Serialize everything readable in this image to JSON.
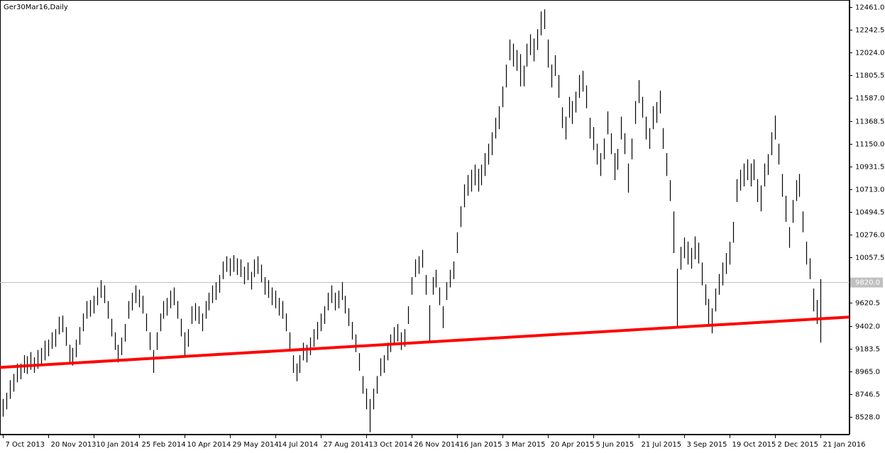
{
  "chart_data": {
    "type": "ohlc",
    "title": "Ger30Mar16,Daily",
    "color": "#000000",
    "categories": [
      "7 Oct 2013",
      null,
      null,
      null,
      null,
      null,
      null,
      null,
      null,
      null,
      null,
      null,
      null,
      "20 Nov 2013",
      null,
      null,
      null,
      null,
      null,
      null,
      null,
      null,
      null,
      null,
      null,
      null,
      "10 Jan 2014",
      null,
      null,
      null,
      null,
      null,
      null,
      null,
      null,
      null,
      null,
      null,
      null,
      "25 Feb 2014",
      null,
      null,
      null,
      null,
      null,
      null,
      null,
      null,
      null,
      null,
      null,
      null,
      "10 Apr 2014",
      null,
      null,
      null,
      null,
      null,
      null,
      null,
      null,
      null,
      null,
      null,
      null,
      "29 May 2014",
      null,
      null,
      null,
      null,
      null,
      null,
      null,
      null,
      null,
      null,
      null,
      null,
      "14 Jul 2014",
      null,
      null,
      null,
      null,
      null,
      null,
      null,
      null,
      null,
      null,
      null,
      null,
      "27 Aug 2014",
      null,
      null,
      null,
      null,
      null,
      null,
      null,
      null,
      null,
      null,
      null,
      null,
      "13 Oct 2014",
      null,
      null,
      null,
      null,
      null,
      null,
      null,
      null,
      null,
      null,
      null,
      null,
      "26 Nov 2014",
      null,
      null,
      null,
      null,
      null,
      null,
      null,
      null,
      null,
      null,
      null,
      null,
      "16 Jan 2015",
      null,
      null,
      null,
      null,
      null,
      null,
      null,
      null,
      null,
      null,
      null,
      null,
      "3 Mar 2015",
      null,
      null,
      null,
      null,
      null,
      null,
      null,
      null,
      null,
      null,
      null,
      null,
      "20 Apr 2015",
      null,
      null,
      null,
      null,
      null,
      null,
      null,
      null,
      null,
      null,
      null,
      null,
      "5 Jun 2015",
      null,
      null,
      null,
      null,
      null,
      null,
      null,
      null,
      null,
      null,
      null,
      null,
      "21 Jul 2015",
      null,
      null,
      null,
      null,
      null,
      null,
      null,
      null,
      null,
      null,
      null,
      null,
      "3 Sep 2015",
      null,
      null,
      null,
      null,
      null,
      null,
      null,
      null,
      null,
      null,
      null,
      null,
      "19 Oct 2015",
      null,
      null,
      null,
      null,
      null,
      null,
      null,
      null,
      null,
      null,
      null,
      null,
      "2 Dec 2015",
      null,
      null,
      null,
      null,
      null,
      null,
      null,
      null,
      null,
      null,
      null,
      null,
      "21 Jan 2016"
    ],
    "high": [
      8700,
      8760,
      8880,
      8940,
      9040,
      9040,
      9120,
      9110,
      9150,
      9100,
      9170,
      9190,
      9260,
      9270,
      9340,
      9370,
      9490,
      9500,
      9390,
      9220,
      9190,
      9270,
      9390,
      9520,
      9640,
      9650,
      9690,
      9770,
      9840,
      9790,
      9640,
      9470,
      9340,
      9220,
      9290,
      9420,
      9640,
      9720,
      9790,
      9750,
      9690,
      9520,
      9340,
      9170,
      9340,
      9520,
      9640,
      9670,
      9740,
      9770,
      9640,
      9470,
      9340,
      9370,
      9590,
      9620,
      9590,
      9520,
      9640,
      9720,
      9790,
      9820,
      9890,
      10020,
      10070,
      10050,
      10080,
      10050,
      10040,
      9970,
      10010,
      9920,
      10040,
      10070,
      9990,
      9870,
      9840,
      9770,
      9740,
      9670,
      9640,
      9520,
      9340,
      9120,
      9040,
      9120,
      9240,
      9220,
      9290,
      9370,
      9440,
      9520,
      9590,
      9720,
      9790,
      9720,
      9740,
      9820,
      9690,
      9570,
      9440,
      9320,
      9140,
      8920,
      8800,
      8700,
      8800,
      8920,
      9090,
      9120,
      9240,
      9320,
      9390,
      9420,
      9340,
      9370,
      9590,
      9870,
      10040,
      10070,
      10130,
      9890,
      9600,
      9870,
      9940,
      9770,
      9590,
      9820,
      9940,
      10020,
      10300,
      10550,
      10760,
      10850,
      10900,
      10950,
      10910,
      10950,
      11060,
      11150,
      11260,
      11400,
      11510,
      11700,
      11910,
      12150,
      12110,
      12050,
      12010,
      11900,
      12110,
      12200,
      12160,
      12250,
      12420,
      12440,
      12150,
      11910,
      12000,
      11810,
      11500,
      11410,
      11600,
      11560,
      11650,
      11810,
      11850,
      11710,
      11400,
      11310,
      11150,
      11060,
      11200,
      11460,
      11250,
      11060,
      11100,
      11410,
      11250,
      10960,
      11200,
      11560,
      11760,
      11600,
      11410,
      11300,
      11510,
      11550,
      11660,
      11300,
      11060,
      10800,
      10500,
      9950,
      10160,
      10250,
      10210,
      10150,
      10260,
      10200,
      10010,
      9800,
      9660,
      9570,
      9760,
      9900,
      10010,
      10100,
      10210,
      10400,
      10810,
      10900,
      10960,
      11000,
      10960,
      11000,
      10810,
      10750,
      10960,
      11050,
      11260,
      11420,
      11150,
      10860,
      10650,
      10350,
      10610,
      10800,
      10860,
      10500,
      10210,
      10050,
      9760,
      9650,
      9850
    ],
    "low": [
      8530,
      8600,
      8700,
      8770,
      8860,
      8890,
      8950,
      8940,
      8980,
      8950,
      8990,
      9020,
      9070,
      9110,
      9180,
      9200,
      9320,
      9340,
      9210,
      9050,
      9020,
      9100,
      9220,
      9350,
      9470,
      9490,
      9520,
      9600,
      9670,
      9620,
      9470,
      9300,
      9170,
      9050,
      9120,
      9250,
      9470,
      9550,
      9620,
      9580,
      9520,
      9350,
      9170,
      8950,
      9170,
      9350,
      9470,
      9500,
      9570,
      9600,
      9470,
      9300,
      9120,
      9200,
      9420,
      9450,
      9420,
      9350,
      9470,
      9550,
      9620,
      9650,
      9720,
      9850,
      9920,
      9880,
      9920,
      9890,
      9870,
      9800,
      9840,
      9750,
      9870,
      9900,
      9820,
      9700,
      9670,
      9600,
      9570,
      9500,
      9470,
      9350,
      9170,
      8950,
      8870,
      8950,
      9070,
      9050,
      9120,
      9200,
      9270,
      9350,
      9420,
      9550,
      9620,
      9550,
      9570,
      9650,
      9520,
      9400,
      9270,
      9150,
      8970,
      8750,
      8600,
      8380,
      8600,
      8750,
      8920,
      8950,
      9070,
      9150,
      9220,
      9250,
      9170,
      9200,
      9420,
      9700,
      9870,
      9900,
      9960,
      9700,
      9250,
      9700,
      9770,
      9600,
      9380,
      9650,
      9770,
      9850,
      10100,
      10350,
      10540,
      10650,
      10690,
      10750,
      10690,
      10750,
      10840,
      10950,
      11040,
      11200,
      11290,
      11500,
      11690,
      11950,
      11890,
      11850,
      11700,
      11700,
      11890,
      12000,
      11940,
      12050,
      12190,
      12250,
      11880,
      11690,
      11800,
      11590,
      11300,
      11190,
      11400,
      11340,
      11450,
      11590,
      11650,
      11490,
      11200,
      11090,
      10950,
      10840,
      11000,
      11240,
      11050,
      10800,
      10900,
      11190,
      11050,
      10680,
      11000,
      11340,
      11540,
      11400,
      11190,
      11100,
      11290,
      11350,
      11440,
      11100,
      10840,
      10600,
      10100,
      9380,
      9940,
      10050,
      9990,
      9950,
      10040,
      10000,
      9790,
      9600,
      9420,
      9330,
      9540,
      9700,
      9790,
      9900,
      9990,
      10200,
      10590,
      10700,
      10740,
      10800,
      10740,
      10800,
      10590,
      10500,
      10740,
      10850,
      11040,
      11190,
      10950,
      10640,
      10400,
      10150,
      10390,
      10600,
      10640,
      10300,
      9990,
      9850,
      9540,
      9420,
      9240
    ],
    "ylim": [
      8358,
      12509
    ],
    "yticks": [
      {
        "value": 12461,
        "label": "12461.0"
      },
      {
        "value": 12242.5,
        "label": "12242.5"
      },
      {
        "value": 12024,
        "label": "12024.0"
      },
      {
        "value": 11805.5,
        "label": "11805.5"
      },
      {
        "value": 11587,
        "label": "11587.0"
      },
      {
        "value": 11368.5,
        "label": "11368.5"
      },
      {
        "value": 11150,
        "label": "11150.0"
      },
      {
        "value": 10931.5,
        "label": "10931.5"
      },
      {
        "value": 10713,
        "label": "10713.0"
      },
      {
        "value": 10494.5,
        "label": "10494.5"
      },
      {
        "value": 10276,
        "label": "10276.0"
      },
      {
        "value": 10057.5,
        "label": "10057.5"
      },
      {
        "value": 9620.5,
        "label": "9620.5"
      },
      {
        "value": 9402,
        "label": "9402.0"
      },
      {
        "value": 9183.5,
        "label": "9183.5"
      },
      {
        "value": 8965,
        "label": "8965.0"
      },
      {
        "value": 8746.5,
        "label": "8746.5"
      },
      {
        "value": 8528,
        "label": "8528.0"
      }
    ],
    "last_price": {
      "value": 9820,
      "label": "9820.0"
    },
    "trendline": {
      "color": "#ff0000",
      "values": [
        9003,
        9486
      ]
    }
  }
}
